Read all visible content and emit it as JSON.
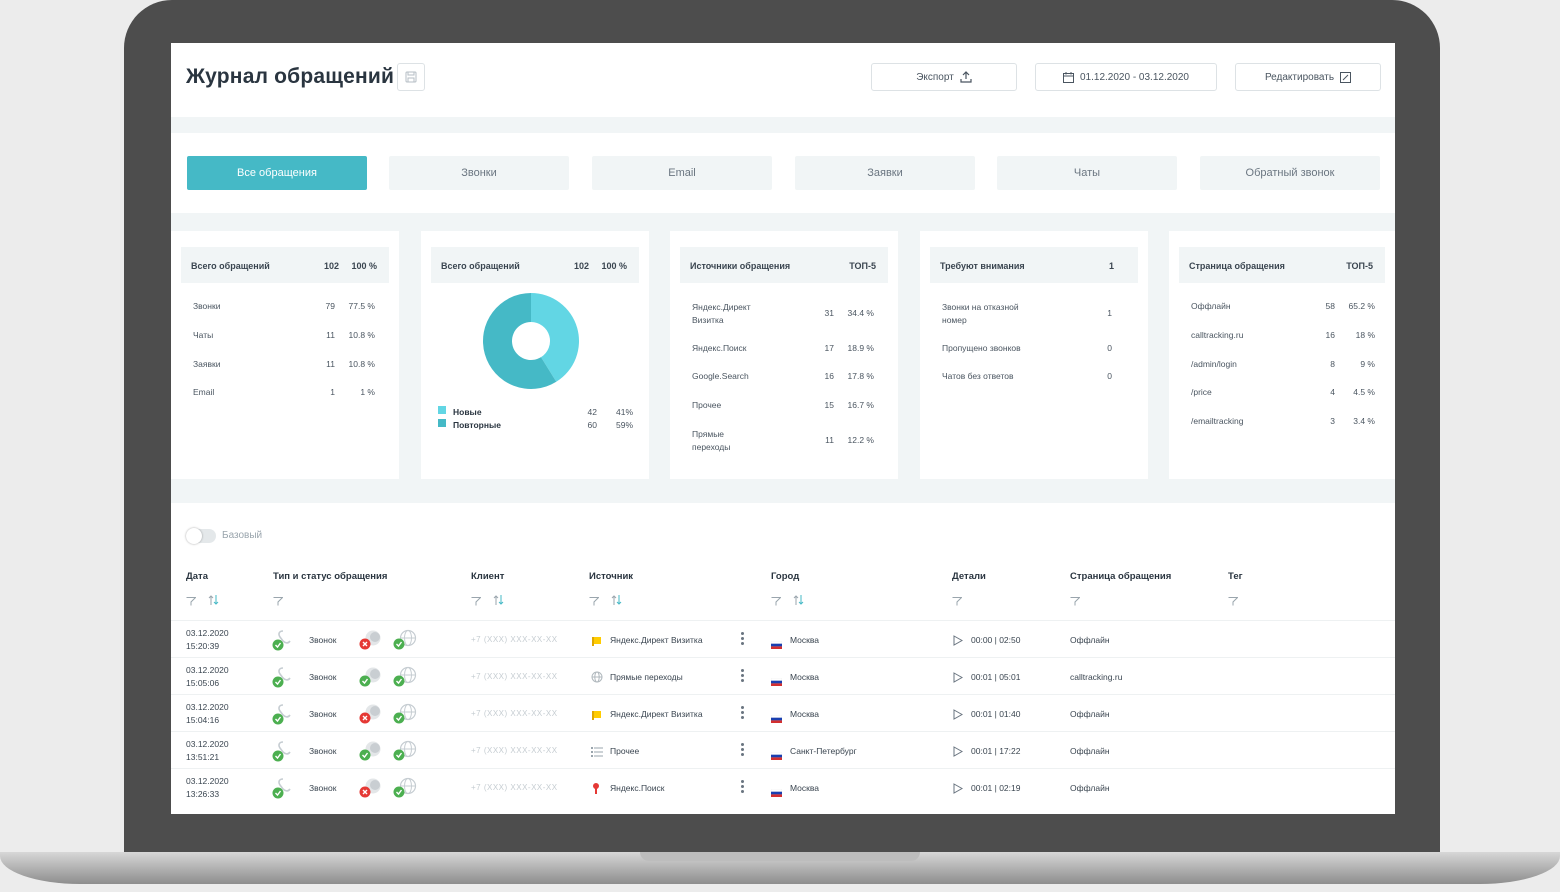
{
  "header": {
    "title": "Журнал обращений",
    "export_label": "Экспорт",
    "date_range": "01.12.2020 - 03.12.2020",
    "edit_label": "Редактировать"
  },
  "tabs": [
    {
      "label": "Все обращения",
      "active": true
    },
    {
      "label": "Звонки",
      "active": false
    },
    {
      "label": "Email",
      "active": false
    },
    {
      "label": "Заявки",
      "active": false
    },
    {
      "label": "Чаты",
      "active": false
    },
    {
      "label": "Обратный звонок",
      "active": false
    }
  ],
  "cards": {
    "totals": {
      "head": "Всего обращений",
      "count": "102",
      "pct": "100 %",
      "rows": [
        {
          "label": "Звонки",
          "count": "79",
          "pct": "77.5 %"
        },
        {
          "label": "Чаты",
          "count": "11",
          "pct": "10.8 %"
        },
        {
          "label": "Заявки",
          "count": "11",
          "pct": "10.8 %"
        },
        {
          "label": "Email",
          "count": "1",
          "pct": "1 %"
        }
      ]
    },
    "donut": {
      "head": "Всего обращений",
      "count": "102",
      "pct": "100 %",
      "legend": [
        {
          "label": "Новые",
          "count": "42",
          "pct": "41%",
          "color": "#62d6e4",
          "value": 42
        },
        {
          "label": "Повторные",
          "count": "60",
          "pct": "59%",
          "color": "#45b9c6",
          "value": 60
        }
      ]
    },
    "sources": {
      "head": "Источники обращения",
      "top": "ТОП-5",
      "rows": [
        {
          "l1": "Яндекс.Директ",
          "l2": "Визитка",
          "count": "31",
          "pct": "34.4 %"
        },
        {
          "l1": "Яндекс.Поиск",
          "l2": "",
          "count": "17",
          "pct": "18.9 %"
        },
        {
          "l1": "Google.Search",
          "l2": "",
          "count": "16",
          "pct": "17.8 %"
        },
        {
          "l1": "Прочее",
          "l2": "",
          "count": "15",
          "pct": "16.7 %"
        },
        {
          "l1": "Прямые",
          "l2": "переходы",
          "count": "11",
          "pct": "12.2 %"
        }
      ]
    },
    "attention": {
      "head": "Требуют внимания",
      "count": "1",
      "rows": [
        {
          "l1": "Звонки на отказной",
          "l2": "номер",
          "count": "1"
        },
        {
          "l1": "Пропущено звонков",
          "l2": "",
          "count": "0"
        },
        {
          "l1": "Чатов без ответов",
          "l2": "",
          "count": "0"
        }
      ]
    },
    "pages": {
      "head": "Страница обращения",
      "top": "ТОП-5",
      "rows": [
        {
          "label": "Оффлайн",
          "count": "58",
          "pct": "65.2 %"
        },
        {
          "label": "calltracking.ru",
          "count": "16",
          "pct": "18 %"
        },
        {
          "label": "/admin/login",
          "count": "8",
          "pct": "9 %"
        },
        {
          "label": "/price",
          "count": "4",
          "pct": "4.5 %"
        },
        {
          "label": "/emailtracking",
          "count": "3",
          "pct": "3.4 %"
        }
      ]
    }
  },
  "toggle_label": "Базовый",
  "table": {
    "columns": [
      "Дата",
      "Тип и статус обращения",
      "Клиент",
      "Источник",
      "Город",
      "Детали",
      "Страница обращения",
      "Тег"
    ],
    "rows": [
      {
        "date": "03.12.2020",
        "time": "15:20:39",
        "type": "Звонок",
        "status": "missed",
        "client": "+7 (XXX) XXX-XX-XX",
        "source": "Яндекс.Директ Визитка",
        "source_icon": "yandex-direct-icon",
        "city": "Москва",
        "details": "00:00 | 02:50",
        "page": "Оффлайн"
      },
      {
        "date": "03.12.2020",
        "time": "15:05:06",
        "type": "Звонок",
        "status": "answered",
        "client": "+7 (XXX) XXX-XX-XX",
        "source": "Прямые переходы",
        "source_icon": "globe-icon",
        "city": "Москва",
        "details": "00:01 | 05:01",
        "page": "calltracking.ru"
      },
      {
        "date": "03.12.2020",
        "time": "15:04:16",
        "type": "Звонок",
        "status": "missed",
        "client": "+7 (XXX) XXX-XX-XX",
        "source": "Яндекс.Директ Визитка",
        "source_icon": "yandex-direct-icon",
        "city": "Москва",
        "details": "00:01 | 01:40",
        "page": "Оффлайн"
      },
      {
        "date": "03.12.2020",
        "time": "13:51:21",
        "type": "Звонок",
        "status": "answered",
        "client": "+7 (XXX) XXX-XX-XX",
        "source": "Прочее",
        "source_icon": "list-icon",
        "city": "Санкт-Петербург",
        "details": "00:01 | 17:22",
        "page": "Оффлайн"
      },
      {
        "date": "03.12.2020",
        "time": "13:26:33",
        "type": "Звонок",
        "status": "missed",
        "client": "+7 (XXX) XXX-XX-XX",
        "source": "Яндекс.Поиск",
        "source_icon": "yandex-search-icon",
        "city": "Москва",
        "details": "00:01 | 02:19",
        "page": "Оффлайн"
      }
    ]
  }
}
